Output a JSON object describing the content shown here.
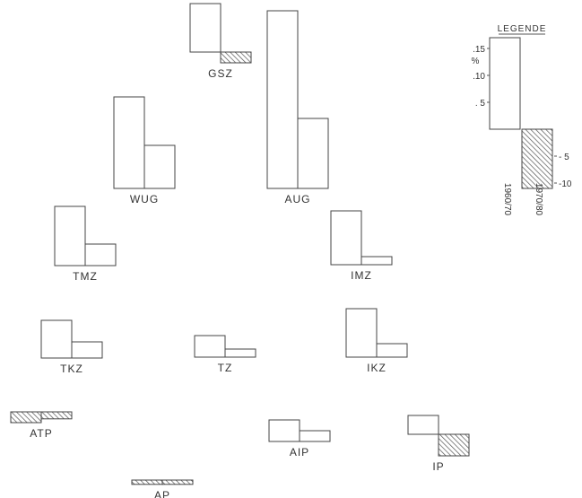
{
  "chart_data": {
    "type": "bar",
    "title": "",
    "series": [
      {
        "name": "1960/70"
      },
      {
        "name": "1970/80"
      }
    ],
    "groups": [
      {
        "label": "GSZ",
        "values": [
          9,
          -2
        ]
      },
      {
        "label": "WUG",
        "values": [
          17,
          8
        ]
      },
      {
        "label": "AUG",
        "values": [
          33,
          13
        ]
      },
      {
        "label": "TMZ",
        "values": [
          11,
          4
        ]
      },
      {
        "label": "IMZ",
        "values": [
          10,
          1.5
        ]
      },
      {
        "label": "TKZ",
        "values": [
          7,
          3
        ]
      },
      {
        "label": "TZ",
        "values": [
          4,
          1.5
        ]
      },
      {
        "label": "IKZ",
        "values": [
          9,
          2.5
        ]
      },
      {
        "label": "ATP",
        "values": [
          -2,
          -1.3
        ]
      },
      {
        "label": "AIP",
        "values": [
          4,
          2
        ]
      },
      {
        "label": "IP",
        "values": [
          3.5,
          -4
        ]
      },
      {
        "label": "AP",
        "values": [
          -0.8,
          -0.8
        ]
      }
    ],
    "legend": {
      "title": "LEGENDE",
      "unit": "%",
      "example_values": [
        17,
        -11
      ],
      "ticks_pos": [
        ".15",
        ".10",
        ". 5"
      ],
      "ticks_neg": [
        "- 5",
        "-10"
      ]
    },
    "colors": {
      "positive": "#ffffff",
      "negative": "hatched",
      "stroke": "#444444"
    }
  }
}
